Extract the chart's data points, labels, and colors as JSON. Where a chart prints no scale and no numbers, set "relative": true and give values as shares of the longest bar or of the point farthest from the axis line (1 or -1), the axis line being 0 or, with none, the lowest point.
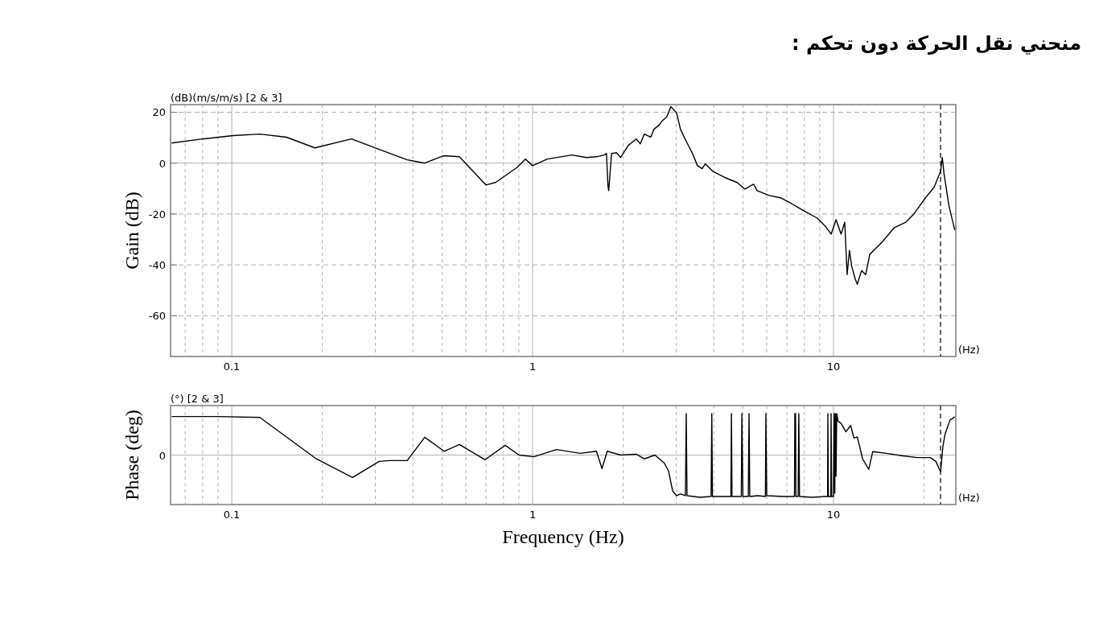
{
  "chart_data": [
    {
      "type": "line",
      "title": "منحني نقل الحركة دون تحكم :",
      "ylabel": "Gain (dB)",
      "log": "x",
      "xlim": [
        0.0626,
        25.5
      ],
      "xticks": [
        0.1,
        1,
        10
      ],
      "ylim": [
        -76,
        23
      ],
      "yticks": [
        20,
        0,
        -20,
        -40,
        -60
      ],
      "grid": true,
      "line_style": "solid",
      "annotations": [
        "(dB)(m/s/m/s) [2 & 3]",
        "(Hz)"
      ],
      "ref_lines": [
        {
          "axis": "x",
          "value": 22.7,
          "line_style": "dashed",
          "color": "#333333"
        }
      ],
      "series": [
        {
          "color": "#000000",
          "x": [
            0.0631,
            0.08,
            0.101,
            0.124,
            0.152,
            0.189,
            0.25,
            0.309,
            0.383,
            0.438,
            0.505,
            0.571,
            0.7,
            0.753,
            0.89,
            0.946,
            1.0,
            1.12,
            1.35,
            1.51,
            1.63,
            1.73,
            1.76,
            1.78,
            1.79,
            1.83,
            1.9,
            1.96,
            2.08,
            2.21,
            2.28,
            2.35,
            2.47,
            2.53,
            2.63,
            2.69,
            2.79,
            2.88,
            2.93,
            3.01,
            3.1,
            3.24,
            3.4,
            3.53,
            3.66,
            3.75,
            3.97,
            4.36,
            4.78,
            5.08,
            5.43,
            5.57,
            6.11,
            6.7,
            7.25,
            8.05,
            8.83,
            9.4,
            9.82,
            10.2,
            10.6,
            10.9,
            11.1,
            11.3,
            11.5,
            11.8,
            12.0,
            12.4,
            12.8,
            13.2,
            13.6,
            14.5,
            15.9,
            17.4,
            18.5,
            20.2,
            21.6,
            22.7,
            23.0,
            23.3,
            24.2,
            25.3
          ],
          "values": [
            7.9,
            9.5,
            10.8,
            11.4,
            10.2,
            6.0,
            9.5,
            5.4,
            1.3,
            0,
            2.9,
            2.5,
            -8.6,
            -7.6,
            -1.6,
            1.6,
            -1.0,
            1.6,
            3.2,
            2.2,
            2.5,
            3.2,
            3.8,
            -8.9,
            -10.8,
            3.8,
            4.1,
            2.2,
            7.0,
            9.5,
            7.6,
            11.4,
            10.2,
            13.3,
            14.9,
            16.5,
            18.1,
            22.2,
            21.3,
            19.7,
            13.3,
            8.6,
            3.8,
            -1.0,
            -2.2,
            -0.3,
            -3.2,
            -5.7,
            -7.6,
            -10.2,
            -8.3,
            -10.8,
            -12.7,
            -13.7,
            -15.9,
            -19.0,
            -21.6,
            -24.8,
            -27.9,
            -22.2,
            -27.9,
            -23.2,
            -43.8,
            -34.3,
            -40.6,
            -45.4,
            -47.6,
            -42.2,
            -43.8,
            -35.9,
            -34.3,
            -31.1,
            -25.4,
            -23.2,
            -20.0,
            -13.7,
            -9.5,
            -3.2,
            2.2,
            -4.1,
            -16.8,
            -26.3
          ]
        }
      ]
    },
    {
      "type": "line",
      "ylabel": "Phase (deg)",
      "xlabel": "Frequency (Hz)",
      "relative": true,
      "log": "x",
      "xlim": [
        0.0626,
        25.5
      ],
      "xticks": [
        0.1,
        1,
        10
      ],
      "grid": true,
      "line_style": "solid",
      "annotations": [
        "(°) [2 & 3]",
        "(Hz)",
        "0"
      ],
      "ref_lines": [
        {
          "axis": "x",
          "value": 22.7,
          "line_style": "dashed",
          "color": "#333333"
        }
      ],
      "series": [
        {
          "color": "#000000",
          "x": [
            0.0631,
            0.09,
            0.124,
            0.191,
            0.252,
            0.309,
            0.334,
            0.383,
            0.438,
            0.508,
            0.571,
            0.695,
            0.811,
            0.901,
            1.01,
            1.2,
            1.44,
            1.63,
            1.7,
            1.77,
            1.96,
            2.21,
            2.35,
            2.55,
            2.74,
            2.83,
            2.92,
            3.01,
            3.1,
            3.22,
            3.24,
            3.26,
            3.6,
            3.92,
            3.94,
            3.96,
            4.3,
            4.56,
            4.58,
            4.6,
            4.94,
            4.96,
            5.0,
            5.21,
            5.24,
            5.27,
            5.6,
            5.94,
            5.96,
            6.0,
            6.8,
            7.42,
            7.44,
            7.48,
            7.5,
            7.63,
            7.67,
            7.71,
            8.5,
            9.3,
            9.56,
            9.58,
            9.62,
            9.8,
            9.82,
            9.86,
            10.0,
            10.05,
            10.1,
            10.15,
            10.2,
            10.25,
            10.35,
            10.6,
            11.0,
            11.4,
            11.7,
            12.0,
            12.5,
            13.1,
            13.5,
            15.0,
            17.0,
            19.0,
            21.0,
            21.9,
            22.7,
            23.1,
            23.5,
            24.4,
            25.3
          ],
          "values": [
            0.91,
            0.91,
            0.89,
            -0.09,
            -0.53,
            -0.15,
            -0.13,
            -0.13,
            0.42,
            0.09,
            0.25,
            -0.11,
            0.23,
            0,
            -0.04,
            0.13,
            0.04,
            0.09,
            -0.32,
            0.09,
            0,
            0.02,
            -0.09,
            0,
            -0.19,
            -0.38,
            -0.85,
            -0.96,
            -0.92,
            -0.96,
            0.98,
            -0.96,
            -1.0,
            -0.98,
            0.98,
            -0.98,
            -0.98,
            -0.98,
            0.98,
            -0.98,
            -0.98,
            0.98,
            -0.98,
            -0.98,
            0.98,
            -0.98,
            -0.96,
            -0.98,
            0.98,
            -0.96,
            -0.98,
            -0.98,
            0.98,
            0.98,
            -0.98,
            -0.98,
            0.98,
            -0.98,
            -1.0,
            -0.98,
            -0.98,
            0.98,
            -0.98,
            -0.98,
            0.98,
            -0.98,
            -0.98,
            0.98,
            -0.9,
            0.98,
            -0.5,
            0.98,
            0.8,
            0.75,
            0.55,
            0.7,
            0.4,
            0.43,
            -0.09,
            -0.34,
            0.08,
            0.04,
            -0.02,
            -0.06,
            -0.06,
            -0.15,
            -0.4,
            0.2,
            0.5,
            0.83,
            0.9
          ]
        }
      ]
    }
  ]
}
